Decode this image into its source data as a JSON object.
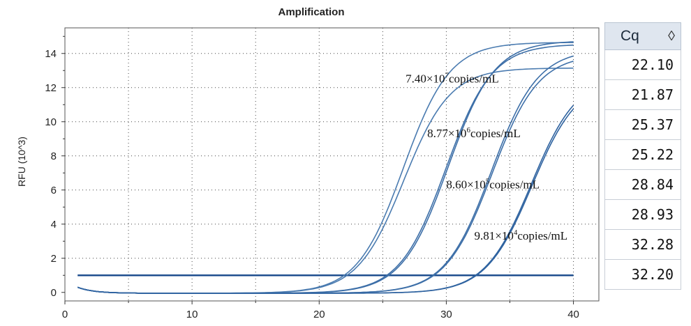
{
  "chart_data": {
    "type": "line",
    "title": "Amplification",
    "ylabel": "RFU (10^3)",
    "xlabel": "",
    "xlim": [
      0,
      42
    ],
    "ylim": [
      -0.5,
      15.5
    ],
    "x_ticks": [
      0,
      10,
      20,
      30,
      40
    ],
    "y_ticks": [
      0,
      2,
      4,
      6,
      8,
      10,
      12,
      14
    ],
    "grid": true,
    "threshold": 1.0,
    "series": [
      {
        "cq": 21.87,
        "plateau": 14.7,
        "color": "#4a7bb0"
      },
      {
        "cq": 22.1,
        "plateau": 13.2,
        "color": "#4a7bb0"
      },
      {
        "cq": 25.22,
        "plateau": 14.6,
        "color": "#3d6fa8"
      },
      {
        "cq": 25.37,
        "plateau": 14.8,
        "color": "#3d6fa8"
      },
      {
        "cq": 28.84,
        "plateau": 14.3,
        "color": "#3d6fa8"
      },
      {
        "cq": 28.93,
        "plateau": 14.0,
        "color": "#3d6fa8"
      },
      {
        "cq": 32.2,
        "plateau": 12.8,
        "color": "#2f63a0"
      },
      {
        "cq": 32.28,
        "plateau": 12.6,
        "color": "#2f63a0"
      }
    ],
    "annotations": [
      {
        "base": "7.40×10",
        "exp": "7",
        "unit": "copies/mL",
        "x": 26.8,
        "y": 12.3
      },
      {
        "base": "8.77×10",
        "exp": "6",
        "unit": "copies/mL",
        "x": 28.5,
        "y": 9.1
      },
      {
        "base": "8.60×10",
        "exp": "5",
        "unit": "copies/mL",
        "x": 30.0,
        "y": 6.1
      },
      {
        "base": "9.81×10",
        "exp": "4",
        "unit": "copies/mL",
        "x": 32.2,
        "y": 3.1
      }
    ]
  },
  "cq_table": {
    "header": "Cq",
    "sort_icon": "◊",
    "values": [
      "22.10",
      "21.87",
      "25.37",
      "25.22",
      "28.84",
      "28.93",
      "32.28",
      "32.20"
    ]
  }
}
